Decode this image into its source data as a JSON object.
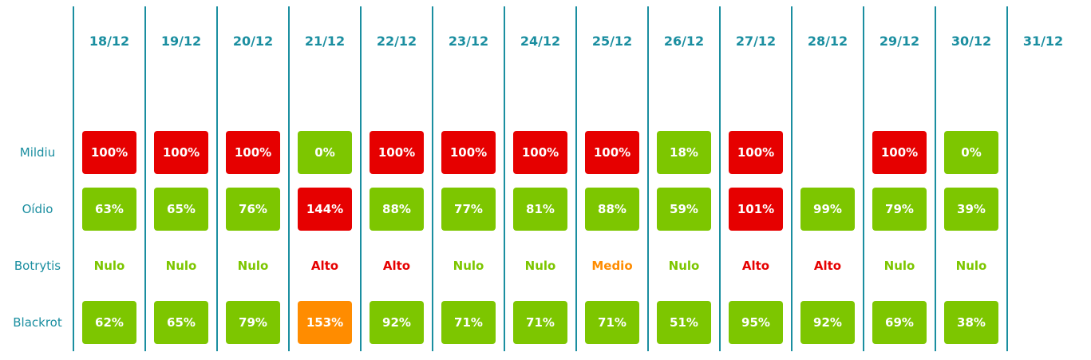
{
  "dates": [
    "18/12",
    "19/12",
    "20/12",
    "21/12",
    "22/12",
    "23/12",
    "24/12",
    "25/12",
    "26/12",
    "27/12",
    "28/12",
    "29/12",
    "30/12",
    "31/12"
  ],
  "rows": [
    {
      "label": "Mildiu",
      "boxed": true,
      "cells": [
        {
          "text": "100%",
          "color": "#e60000"
        },
        {
          "text": "100%",
          "color": "#e60000"
        },
        {
          "text": "100%",
          "color": "#e60000"
        },
        {
          "text": "0%",
          "color": "#7dc600"
        },
        {
          "text": "100%",
          "color": "#e60000"
        },
        {
          "text": "100%",
          "color": "#e60000"
        },
        {
          "text": "100%",
          "color": "#e60000"
        },
        {
          "text": "100%",
          "color": "#e60000"
        },
        {
          "text": "18%",
          "color": "#7dc600"
        },
        {
          "text": "100%",
          "color": "#e60000"
        },
        null,
        {
          "text": "100%",
          "color": "#e60000"
        },
        {
          "text": "0%",
          "color": "#7dc600"
        },
        null
      ]
    },
    {
      "label": "Oídio",
      "boxed": true,
      "cells": [
        {
          "text": "63%",
          "color": "#7dc600"
        },
        {
          "text": "65%",
          "color": "#7dc600"
        },
        {
          "text": "76%",
          "color": "#7dc600"
        },
        {
          "text": "144%",
          "color": "#e60000"
        },
        {
          "text": "88%",
          "color": "#7dc600"
        },
        {
          "text": "77%",
          "color": "#7dc600"
        },
        {
          "text": "81%",
          "color": "#7dc600"
        },
        {
          "text": "88%",
          "color": "#7dc600"
        },
        {
          "text": "59%",
          "color": "#7dc600"
        },
        {
          "text": "101%",
          "color": "#e60000"
        },
        {
          "text": "99%",
          "color": "#7dc600"
        },
        {
          "text": "79%",
          "color": "#7dc600"
        },
        {
          "text": "39%",
          "color": "#7dc600"
        },
        null
      ]
    },
    {
      "label": "Botrytis",
      "boxed": false,
      "cells": [
        {
          "text": "Nulo",
          "color": "#7dc600"
        },
        {
          "text": "Nulo",
          "color": "#7dc600"
        },
        {
          "text": "Nulo",
          "color": "#7dc600"
        },
        {
          "text": "Alto",
          "color": "#e60000"
        },
        {
          "text": "Alto",
          "color": "#e60000"
        },
        {
          "text": "Nulo",
          "color": "#7dc600"
        },
        {
          "text": "Nulo",
          "color": "#7dc600"
        },
        {
          "text": "Medio",
          "color": "#ff8c00"
        },
        {
          "text": "Nulo",
          "color": "#7dc600"
        },
        {
          "text": "Alto",
          "color": "#e60000"
        },
        {
          "text": "Alto",
          "color": "#e60000"
        },
        {
          "text": "Nulo",
          "color": "#7dc600"
        },
        {
          "text": "Nulo",
          "color": "#7dc600"
        },
        null
      ]
    },
    {
      "label": "Blackrot",
      "boxed": true,
      "cells": [
        {
          "text": "62%",
          "color": "#7dc600"
        },
        {
          "text": "65%",
          "color": "#7dc600"
        },
        {
          "text": "79%",
          "color": "#7dc600"
        },
        {
          "text": "153%",
          "color": "#ff8c00"
        },
        {
          "text": "92%",
          "color": "#7dc600"
        },
        {
          "text": "71%",
          "color": "#7dc600"
        },
        {
          "text": "71%",
          "color": "#7dc600"
        },
        {
          "text": "71%",
          "color": "#7dc600"
        },
        {
          "text": "51%",
          "color": "#7dc600"
        },
        {
          "text": "95%",
          "color": "#7dc600"
        },
        {
          "text": "92%",
          "color": "#7dc600"
        },
        {
          "text": "69%",
          "color": "#7dc600"
        },
        {
          "text": "38%",
          "color": "#7dc600"
        },
        null
      ]
    }
  ]
}
